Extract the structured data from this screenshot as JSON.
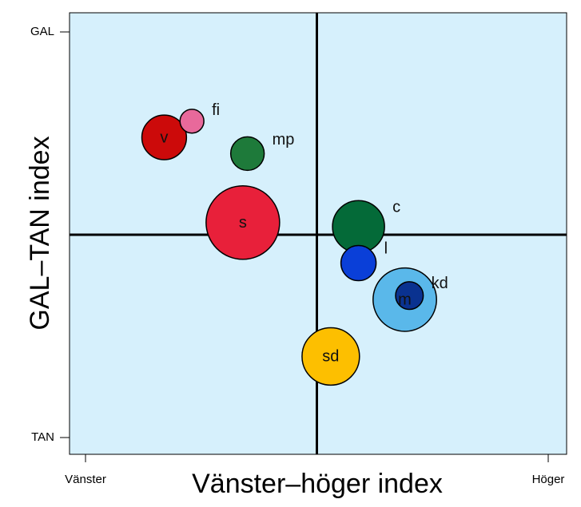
{
  "chart_data": {
    "type": "scatter",
    "title": "",
    "xlabel": "Vänster–höger index",
    "ylabel": "GAL–TAN index",
    "x_tick_labels": [
      "Vänster",
      "Höger"
    ],
    "y_tick_labels": [
      "GAL",
      "TAN"
    ],
    "xlim": [
      0,
      1
    ],
    "ylim": [
      0,
      1
    ],
    "grid": false,
    "background_color": "#d6f0fc",
    "reference_lines": {
      "x": 0.5,
      "y": 0.5
    },
    "points": [
      {
        "label": "v",
        "x": 0.17,
        "y": 0.74,
        "size": 0.3,
        "color": "#cc0a0a",
        "label_pos": "inside"
      },
      {
        "label": "fi",
        "x": 0.23,
        "y": 0.78,
        "size": 0.05,
        "color": "#e8699b",
        "label_pos": "right"
      },
      {
        "label": "mp",
        "x": 0.35,
        "y": 0.7,
        "size": 0.14,
        "color": "#1e7a3a",
        "label_pos": "right"
      },
      {
        "label": "s",
        "x": 0.34,
        "y": 0.53,
        "size": 1.0,
        "color": "#e8203a",
        "label_pos": "inside"
      },
      {
        "label": "c",
        "x": 0.59,
        "y": 0.52,
        "size": 0.44,
        "color": "#046a38",
        "label_pos": "right"
      },
      {
        "label": "l",
        "x": 0.59,
        "y": 0.43,
        "size": 0.16,
        "color": "#0a3fd8",
        "label_pos": "right"
      },
      {
        "label": "m",
        "x": 0.69,
        "y": 0.34,
        "size": 0.71,
        "color": "#5ab8ea",
        "label_pos": "inside"
      },
      {
        "label": "kd",
        "x": 0.7,
        "y": 0.35,
        "size": 0.08,
        "color": "#0a3290",
        "label_pos": "right"
      },
      {
        "label": "sd",
        "x": 0.53,
        "y": 0.2,
        "size": 0.56,
        "color": "#fdbf00",
        "label_pos": "inside"
      }
    ]
  }
}
